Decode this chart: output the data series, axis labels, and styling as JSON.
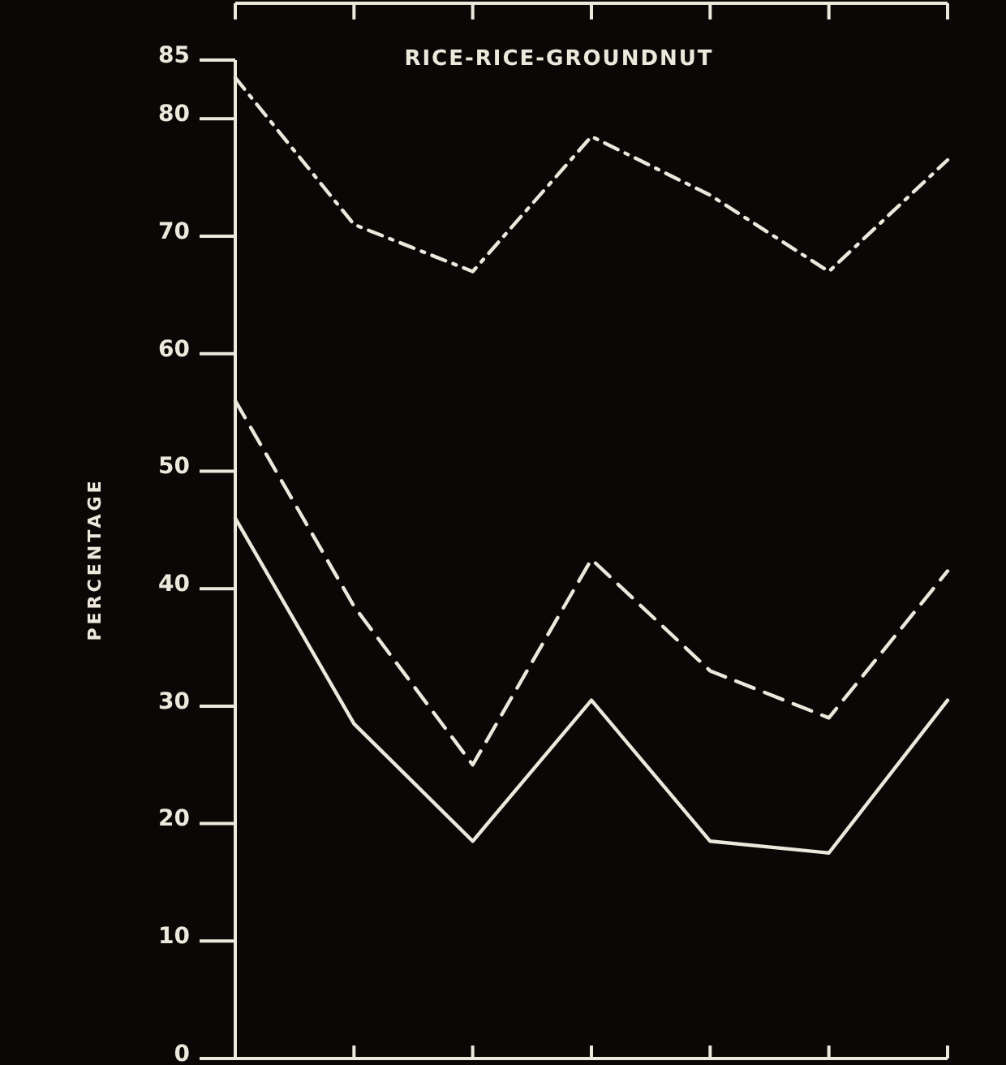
{
  "chart_data": {
    "type": "line",
    "title": "RICE-RICE-GROUNDNUT",
    "ylabel": "PERCENTAGE",
    "categories": [
      null,
      null,
      null,
      null,
      null,
      null,
      null
    ],
    "ylim": [
      0,
      85
    ],
    "yticks": [
      0,
      10,
      20,
      30,
      40,
      50,
      60,
      70,
      80,
      85
    ],
    "grid": false,
    "marker": "none",
    "series": [
      {
        "color": "#ece8dc",
        "line_style": "dotted",
        "values": [
          83.5,
          71,
          67,
          78.5,
          73.5,
          67,
          76.5
        ]
      },
      {
        "color": "#ece8dc",
        "line_style": "dashed",
        "values": [
          56,
          38.5,
          25,
          42.5,
          33,
          29,
          41.5
        ]
      },
      {
        "color": "#ece8dc",
        "line_style": "solid",
        "values": [
          46,
          28.5,
          18.5,
          30.5,
          18.5,
          17.5,
          30.5
        ]
      }
    ]
  }
}
